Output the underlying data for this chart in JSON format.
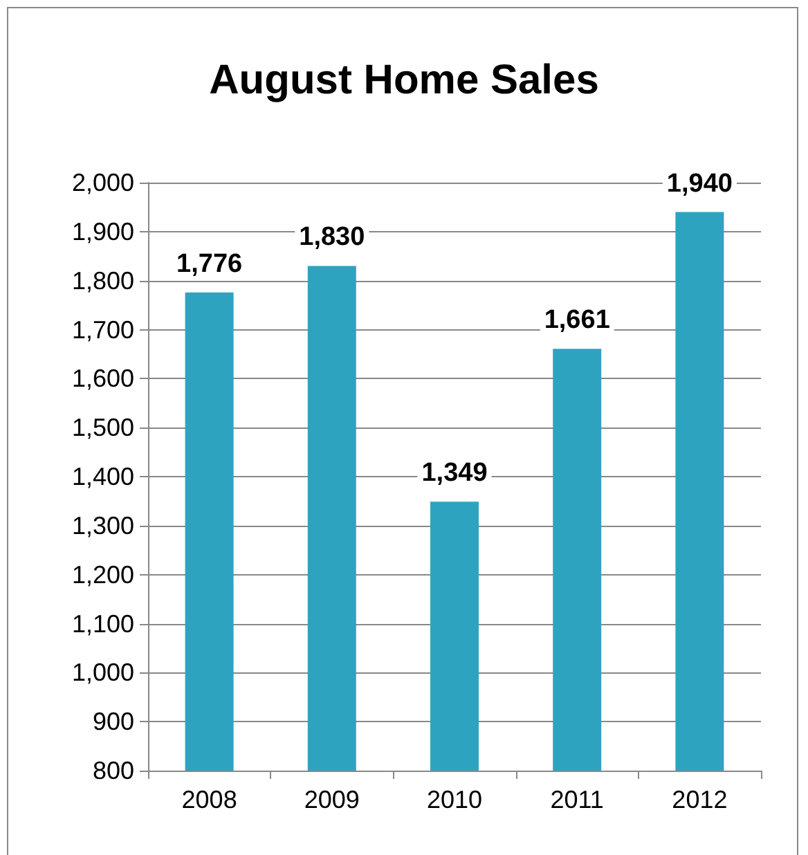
{
  "chart_data": {
    "type": "bar",
    "title": "August Home Sales",
    "categories": [
      "2008",
      "2009",
      "2010",
      "2011",
      "2012"
    ],
    "values": [
      1776,
      1830,
      1349,
      1661,
      1940
    ],
    "color": "#2ea3c0",
    "ylim": [
      800,
      2000
    ],
    "yticks": [
      {
        "value": 800,
        "label": "800"
      },
      {
        "value": 900,
        "label": "900"
      },
      {
        "value": 1000,
        "label": "1,000"
      },
      {
        "value": 1100,
        "label": "1,100"
      },
      {
        "value": 1200,
        "label": "1,200"
      },
      {
        "value": 1300,
        "label": "1,300"
      },
      {
        "value": 1400,
        "label": "1,400"
      },
      {
        "value": 1500,
        "label": "1,500"
      },
      {
        "value": 1600,
        "label": "1,600"
      },
      {
        "value": 1700,
        "label": "1,700"
      },
      {
        "value": 1800,
        "label": "1,800"
      },
      {
        "value": 1900,
        "label": "1,900"
      },
      {
        "value": 2000,
        "label": "2,000"
      }
    ],
    "value_labels": [
      "1,776",
      "1,830",
      "1,349",
      "1,661",
      "1,940"
    ],
    "grid": true
  }
}
